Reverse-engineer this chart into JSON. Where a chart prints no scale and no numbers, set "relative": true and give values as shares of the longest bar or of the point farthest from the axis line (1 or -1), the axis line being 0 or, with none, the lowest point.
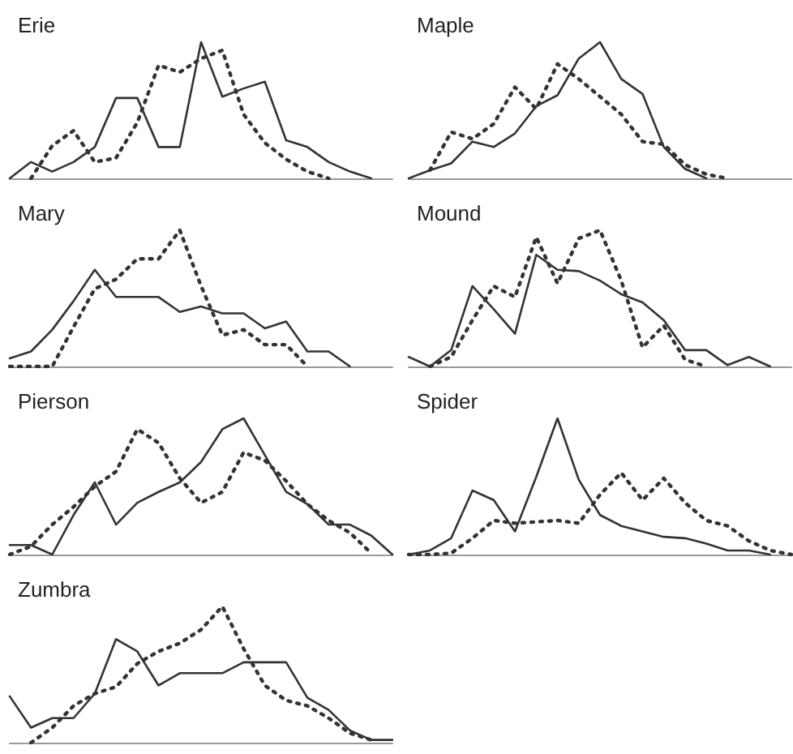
{
  "chart_data": [
    {
      "type": "line",
      "title": "Erie",
      "relative": true,
      "marker": "none",
      "categories": [
        null,
        null,
        null,
        null,
        null,
        null,
        null,
        null,
        null,
        null,
        null,
        null,
        null,
        null,
        null,
        null,
        null,
        null,
        null
      ],
      "series": [
        {
          "color": "#333333",
          "line_style": "solid",
          "values": [
            0,
            0.12,
            0.05,
            0.12,
            0.23,
            0.59,
            0.59,
            0.23,
            0.23,
            1,
            0.6,
            0.66,
            0.71,
            0.28,
            0.23,
            0.12,
            0.05,
            0,
            null
          ]
        },
        {
          "color": "#333333",
          "line_style": "dotted",
          "values": [
            null,
            0,
            0.24,
            0.35,
            0.12,
            0.15,
            0.41,
            0.83,
            0.78,
            0.88,
            0.94,
            0.47,
            0.26,
            0.14,
            0.05,
            0,
            null,
            null,
            null
          ]
        }
      ]
    },
    {
      "type": "line",
      "title": "Maple",
      "relative": true,
      "marker": "none",
      "categories": [
        null,
        null,
        null,
        null,
        null,
        null,
        null,
        null,
        null,
        null,
        null,
        null,
        null,
        null,
        null,
        null,
        null,
        null,
        null
      ],
      "series": [
        {
          "color": "#333333",
          "line_style": "solid",
          "values": [
            0,
            0.06,
            0.11,
            0.27,
            0.23,
            0.33,
            0.53,
            0.61,
            0.88,
            1,
            0.73,
            0.62,
            0.23,
            0.07,
            0,
            null,
            null,
            null,
            null
          ]
        },
        {
          "color": "#333333",
          "line_style": "dotted",
          "values": [
            null,
            0.06,
            0.34,
            0.29,
            0.4,
            0.67,
            0.51,
            0.84,
            0.73,
            0.6,
            0.47,
            0.27,
            0.25,
            0.1,
            0.03,
            0,
            null,
            null,
            null
          ]
        }
      ]
    },
    {
      "type": "line",
      "title": "Mary",
      "relative": true,
      "marker": "none",
      "categories": [
        null,
        null,
        null,
        null,
        null,
        null,
        null,
        null,
        null,
        null,
        null,
        null,
        null,
        null,
        null,
        null,
        null,
        null,
        null
      ],
      "series": [
        {
          "color": "#333333",
          "line_style": "solid",
          "values": [
            0.06,
            0.11,
            0.27,
            0.48,
            0.71,
            0.51,
            0.51,
            0.51,
            0.4,
            0.44,
            0.39,
            0.39,
            0.28,
            0.33,
            0.11,
            0.11,
            0,
            null,
            null
          ]
        },
        {
          "color": "#333333",
          "line_style": "dotted",
          "values": [
            0,
            0,
            0,
            0.29,
            0.57,
            0.64,
            0.79,
            0.79,
            1,
            0.59,
            0.23,
            0.27,
            0.16,
            0.16,
            0,
            null,
            null,
            null,
            null
          ]
        }
      ]
    },
    {
      "type": "line",
      "title": "Mound",
      "relative": true,
      "marker": "none",
      "categories": [
        null,
        null,
        null,
        null,
        null,
        null,
        null,
        null,
        null,
        null,
        null,
        null,
        null,
        null,
        null,
        null,
        null,
        null,
        null
      ],
      "series": [
        {
          "color": "#333333",
          "line_style": "solid",
          "values": [
            0.07,
            0,
            0.12,
            0.59,
            0.42,
            0.24,
            0.82,
            0.71,
            0.7,
            0.63,
            0.53,
            0.47,
            0.34,
            0.12,
            0.12,
            0.01,
            0.07,
            0,
            null
          ]
        },
        {
          "color": "#333333",
          "line_style": "dotted",
          "values": [
            null,
            0,
            0.07,
            0.34,
            0.59,
            0.51,
            0.95,
            0.61,
            0.94,
            1,
            0.63,
            0.14,
            0.3,
            0.05,
            0,
            null,
            null,
            null,
            null
          ]
        }
      ]
    },
    {
      "type": "line",
      "title": "Pierson",
      "relative": true,
      "marker": "none",
      "categories": [
        null,
        null,
        null,
        null,
        null,
        null,
        null,
        null,
        null,
        null,
        null,
        null,
        null,
        null,
        null,
        null,
        null,
        null,
        null
      ],
      "series": [
        {
          "color": "#333333",
          "line_style": "solid",
          "values": [
            0.07,
            0.07,
            0,
            0.29,
            0.53,
            0.22,
            0.38,
            0.46,
            0.53,
            0.68,
            0.92,
            1,
            0.73,
            0.46,
            0.37,
            0.22,
            0.22,
            0.14,
            0
          ]
        },
        {
          "color": "#333333",
          "line_style": "dotted",
          "values": [
            0,
            0.06,
            0.22,
            0.35,
            0.5,
            0.61,
            0.92,
            0.82,
            0.56,
            0.38,
            0.46,
            0.75,
            0.69,
            0.54,
            0.37,
            0.25,
            0.16,
            0.01,
            null
          ]
        }
      ]
    },
    {
      "type": "line",
      "title": "Spider",
      "relative": true,
      "marker": "none",
      "categories": [
        null,
        null,
        null,
        null,
        null,
        null,
        null,
        null,
        null,
        null,
        null,
        null,
        null,
        null,
        null,
        null,
        null,
        null,
        null
      ],
      "series": [
        {
          "color": "#333333",
          "line_style": "solid",
          "values": [
            0,
            0.03,
            0.12,
            0.47,
            0.4,
            0.17,
            0.57,
            1,
            0.55,
            0.29,
            0.21,
            0.17,
            0.13,
            0.12,
            0.08,
            0.03,
            0.03,
            0,
            null
          ]
        },
        {
          "color": "#333333",
          "line_style": "dotted",
          "values": [
            0,
            0,
            0.01,
            0.12,
            0.25,
            0.23,
            0.24,
            0.25,
            0.23,
            0.44,
            0.6,
            0.4,
            0.56,
            0.38,
            0.25,
            0.21,
            0.1,
            0.03,
            0
          ]
        }
      ]
    },
    {
      "type": "line",
      "title": "Zumbra",
      "relative": true,
      "marker": "none",
      "categories": [
        null,
        null,
        null,
        null,
        null,
        null,
        null,
        null,
        null,
        null,
        null,
        null,
        null,
        null,
        null,
        null,
        null,
        null,
        null
      ],
      "series": [
        {
          "color": "#333333",
          "line_style": "solid",
          "values": [
            0.34,
            0.11,
            0.18,
            0.18,
            0.36,
            0.76,
            0.67,
            0.42,
            0.51,
            0.51,
            0.51,
            0.59,
            0.59,
            0.59,
            0.33,
            0.24,
            0.09,
            0.02,
            0.02
          ]
        },
        {
          "color": "#333333",
          "line_style": "dotted",
          "values": [
            null,
            0,
            0.11,
            0.27,
            0.36,
            0.41,
            0.58,
            0.67,
            0.73,
            0.83,
            1,
            0.69,
            0.42,
            0.31,
            0.27,
            0.18,
            0.07,
            0.02,
            null
          ]
        }
      ]
    }
  ]
}
